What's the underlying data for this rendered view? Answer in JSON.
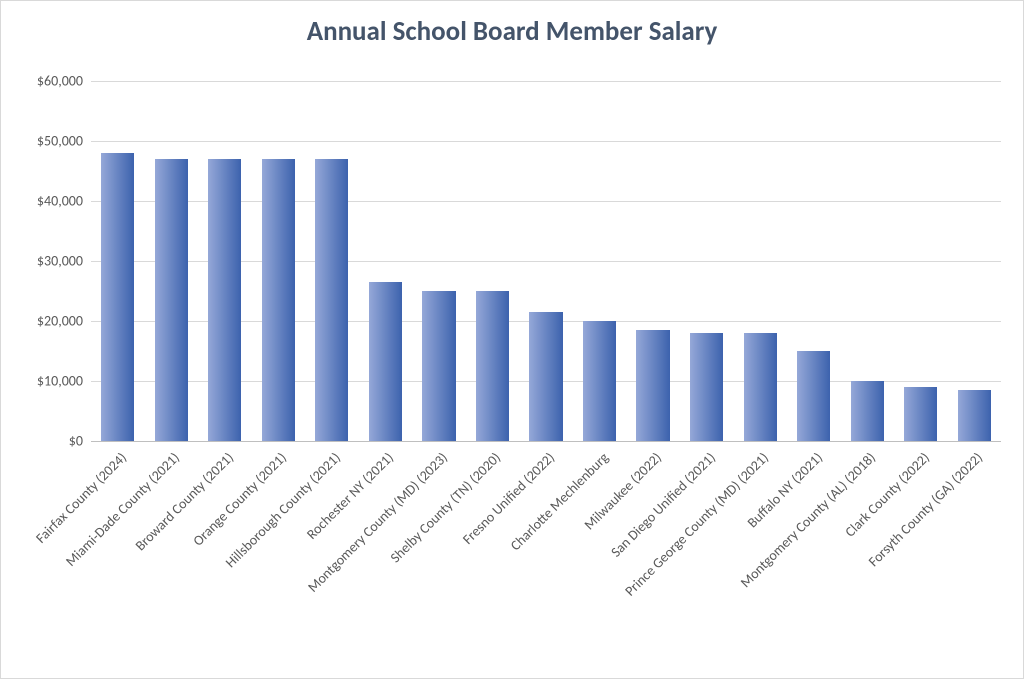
{
  "chart": {
    "type": "bar",
    "title": "Annual School Board Member Salary",
    "title_color": "#44546a",
    "title_fontsize": 27,
    "title_fontweight": "700",
    "background_color": "#ffffff",
    "frame_border_color": "#d9d9d9",
    "axis_label_color": "#595959",
    "axis_label_fontsize": 14,
    "grid_color": "#d9d9d9",
    "baseline_color": "#bfbfbf",
    "y": {
      "min": 0,
      "max": 60000,
      "tick_step": 10000,
      "tick_labels": [
        "$0",
        "$10,000",
        "$20,000",
        "$30,000",
        "$40,000",
        "$50,000",
        "$60,000"
      ]
    },
    "bar_gradient_left": "#95a8d8",
    "bar_gradient_right": "#3c62ad",
    "bar_width_ratio": 0.62,
    "categories": [
      "Fairfax County (2024)",
      "Miami-Dade County (2021)",
      "Broward County (2021)",
      "Orange County (2021)",
      "Hillsborough County (2021)",
      "Rochester NY (2021)",
      "Montgomery County (MD) (2023)",
      "Shelby County (TN) (2020)",
      "Fresno Unified (2022)",
      "Charlotte Mechlenburg",
      "Milwaukee (2022)",
      "San Diego Unified (2021)",
      "Prince George County (MD) (2021)",
      "Buffalo NY (2021)",
      "Montgomery County (AL) (2018)",
      "Clark County (2022)",
      "Forsyth County (GA) (2022)"
    ],
    "values": [
      48000,
      47000,
      47000,
      47000,
      47000,
      26500,
      25000,
      25000,
      21500,
      20000,
      18500,
      18000,
      18000,
      15000,
      10000,
      9000,
      8500
    ]
  }
}
